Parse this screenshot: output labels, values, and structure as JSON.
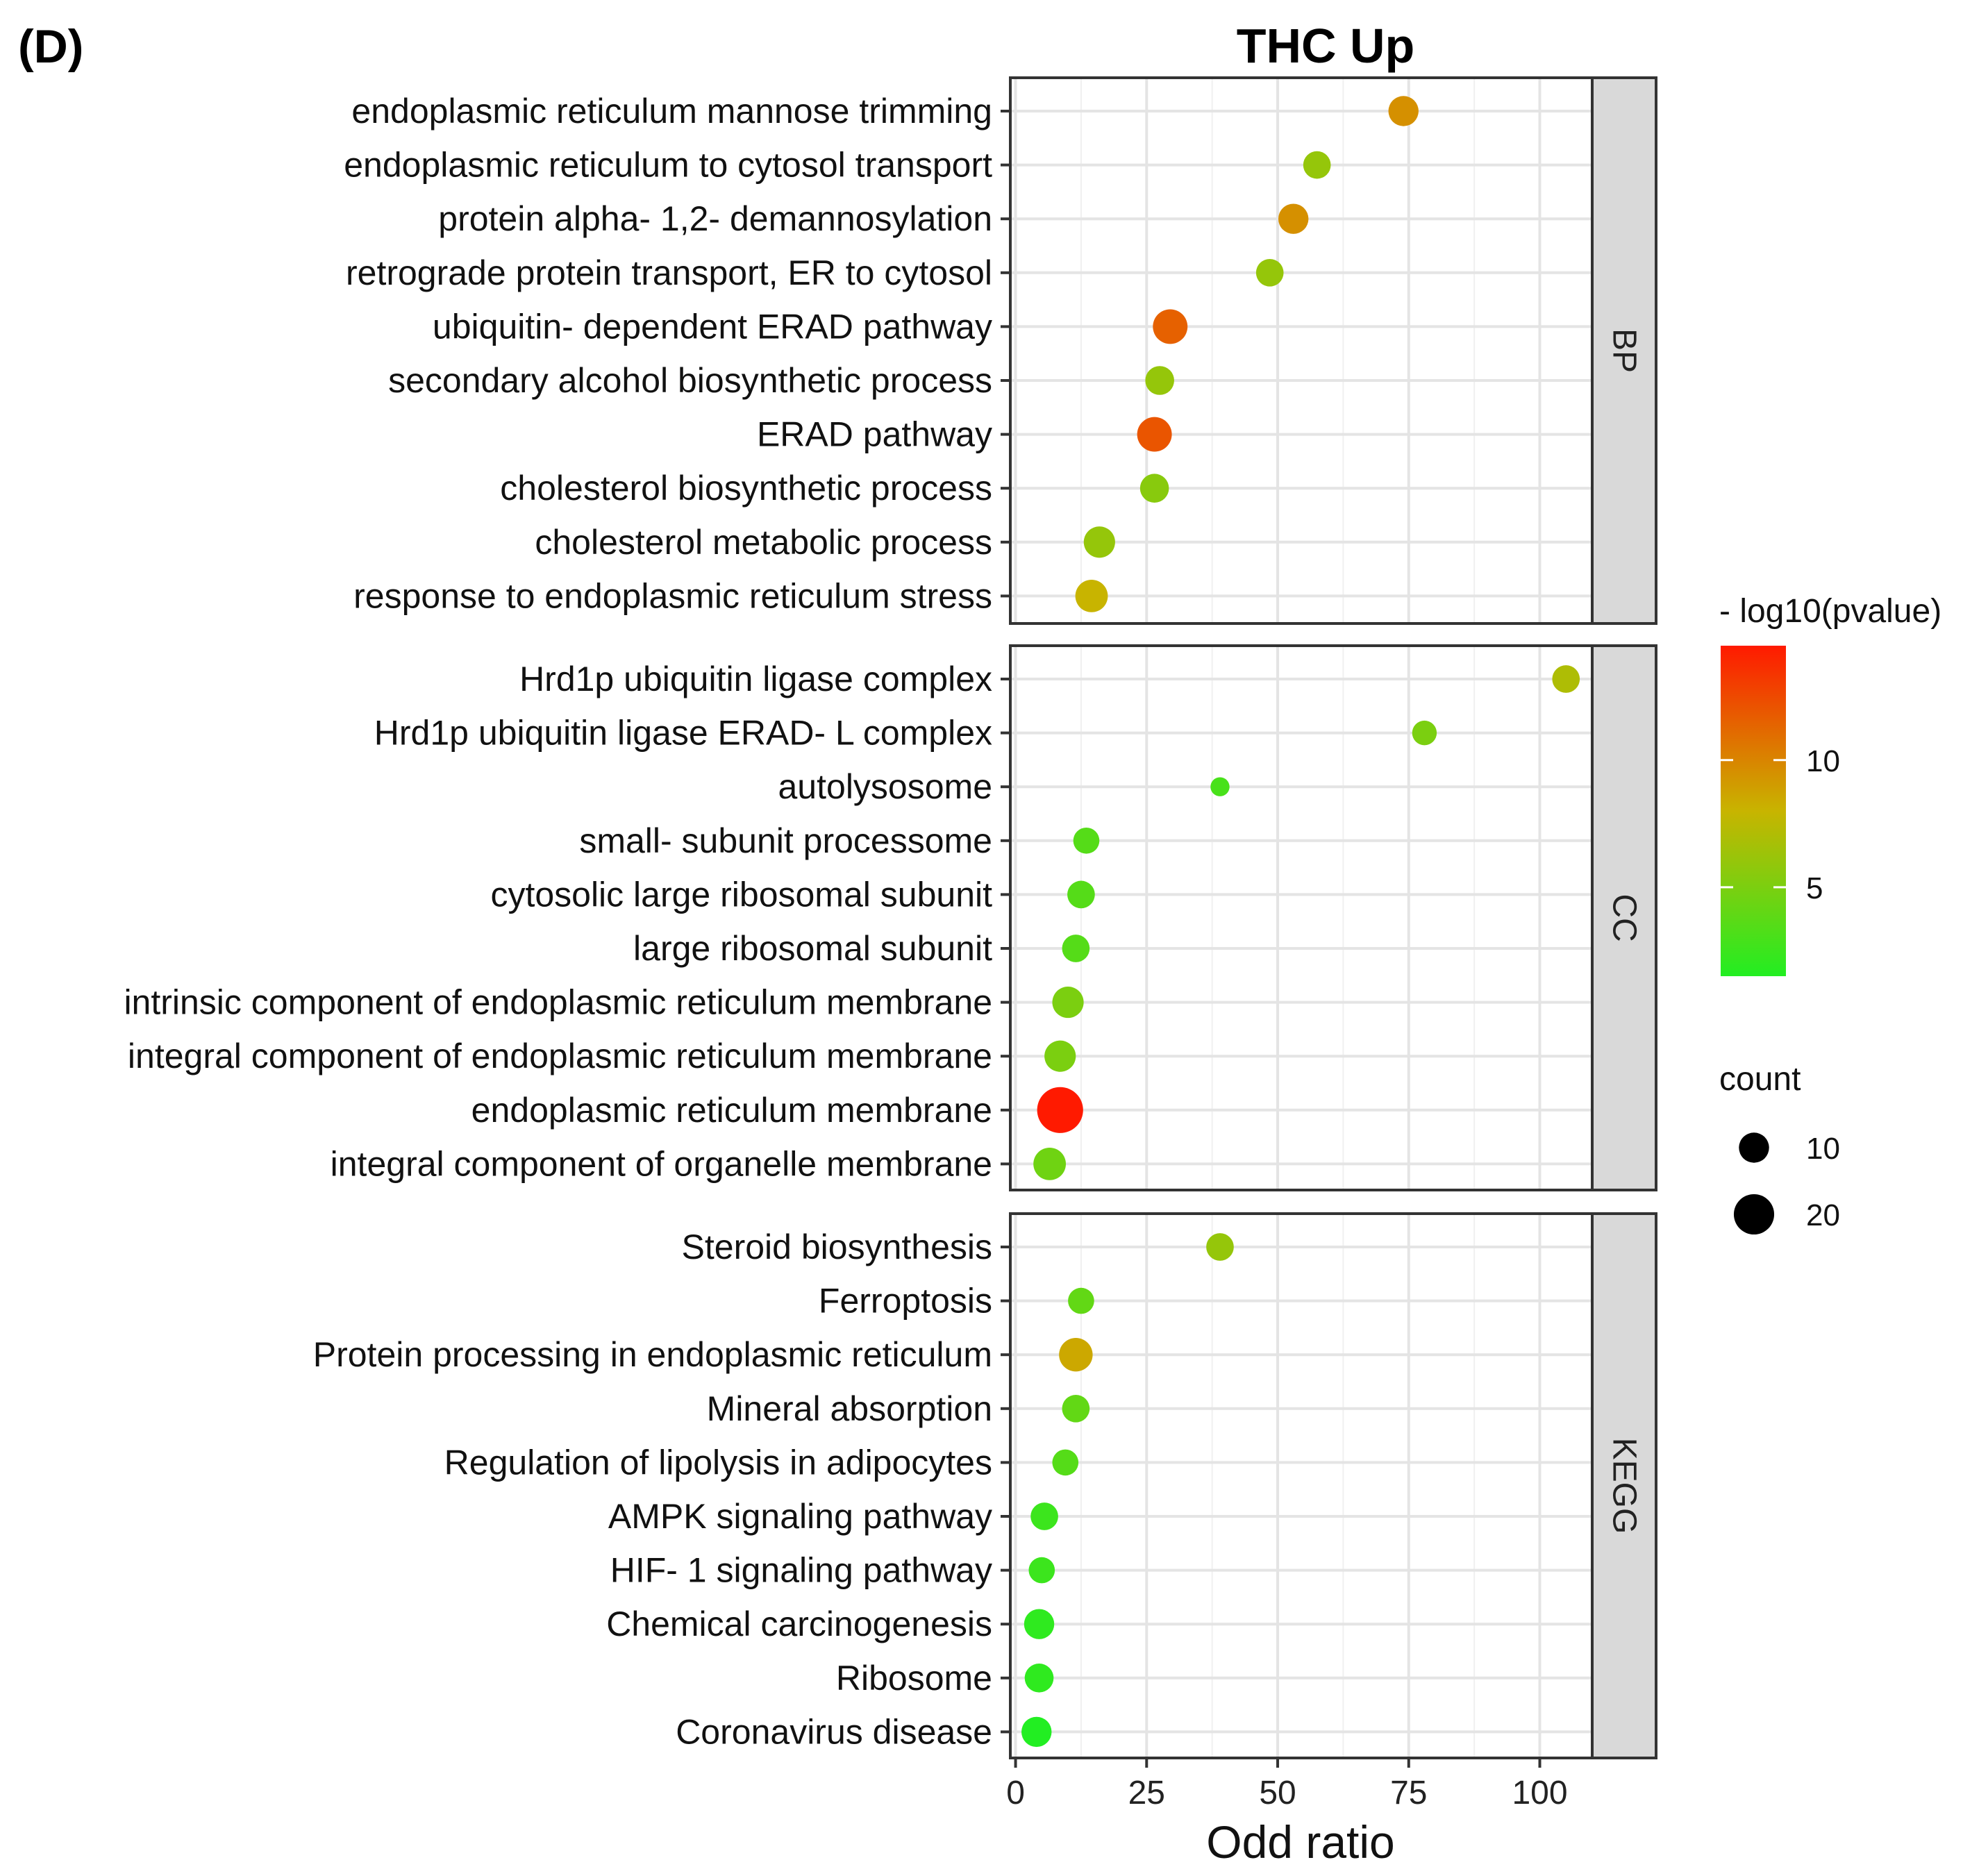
{
  "panel_label": "(D)",
  "chart_data": {
    "type": "scatter",
    "subtype": "enrichment-dot-plot",
    "title": "THC Up",
    "xlabel": "Odd ratio",
    "xlim": [
      -1,
      110
    ],
    "xticks": [
      0,
      25,
      50,
      75,
      100
    ],
    "grid": true,
    "facets": [
      {
        "name": "BP",
        "terms": [
          {
            "label": "endoplasmic reticulum mannose trimming",
            "odd_ratio": 74,
            "neglog10p": 9.5,
            "count": 10
          },
          {
            "label": "endoplasmic reticulum to cytosol transport",
            "odd_ratio": 57.5,
            "neglog10p": 6,
            "count": 8
          },
          {
            "label": "protein alpha- 1,2- demannosylation",
            "odd_ratio": 53,
            "neglog10p": 9.5,
            "count": 10
          },
          {
            "label": "retrograde protein transport, ER to cytosol",
            "odd_ratio": 48.5,
            "neglog10p": 6,
            "count": 8
          },
          {
            "label": "ubiquitin- dependent ERAD pathway",
            "odd_ratio": 29.5,
            "neglog10p": 11.5,
            "count": 14
          },
          {
            "label": "secondary alcohol biosynthetic process",
            "odd_ratio": 27.5,
            "neglog10p": 6,
            "count": 9
          },
          {
            "label": "ERAD pathway",
            "odd_ratio": 26.5,
            "neglog10p": 12,
            "count": 14
          },
          {
            "label": "cholesterol biosynthetic process",
            "odd_ratio": 26.5,
            "neglog10p": 5.5,
            "count": 9
          },
          {
            "label": "cholesterol metabolic process",
            "odd_ratio": 16,
            "neglog10p": 6,
            "count": 11
          },
          {
            "label": "response to endoplasmic reticulum stress",
            "odd_ratio": 14.5,
            "neglog10p": 8,
            "count": 12
          }
        ]
      },
      {
        "name": "CC",
        "terms": [
          {
            "label": "Hrd1p ubiquitin ligase complex",
            "odd_ratio": 105,
            "neglog10p": 7,
            "count": 8
          },
          {
            "label": "Hrd1p ubiquitin ligase ERAD- L complex",
            "odd_ratio": 78,
            "neglog10p": 5,
            "count": 6
          },
          {
            "label": "autolysosome",
            "odd_ratio": 39,
            "neglog10p": 3,
            "count": 3
          },
          {
            "label": "small- subunit processome",
            "odd_ratio": 13.5,
            "neglog10p": 3.5,
            "count": 7
          },
          {
            "label": "cytosolic large ribosomal subunit",
            "odd_ratio": 12.5,
            "neglog10p": 3.5,
            "count": 8
          },
          {
            "label": "large ribosomal subunit",
            "odd_ratio": 11.5,
            "neglog10p": 3.5,
            "count": 8
          },
          {
            "label": "intrinsic component of endoplasmic reticulum membrane",
            "odd_ratio": 10,
            "neglog10p": 5,
            "count": 11
          },
          {
            "label": "integral component of endoplasmic reticulum membrane",
            "odd_ratio": 8.5,
            "neglog10p": 5,
            "count": 11
          },
          {
            "label": "endoplasmic reticulum membrane",
            "odd_ratio": 8.5,
            "neglog10p": 14.5,
            "count": 27
          },
          {
            "label": "integral component of organelle membrane",
            "odd_ratio": 6.5,
            "neglog10p": 4.5,
            "count": 12
          }
        ]
      },
      {
        "name": "KEGG",
        "terms": [
          {
            "label": "Steroid biosynthesis",
            "odd_ratio": 39,
            "neglog10p": 6,
            "count": 8
          },
          {
            "label": "Ferroptosis",
            "odd_ratio": 12.5,
            "neglog10p": 4,
            "count": 7
          },
          {
            "label": "Protein processing in endoplasmic reticulum",
            "odd_ratio": 11.5,
            "neglog10p": 8.5,
            "count": 13
          },
          {
            "label": "Mineral absorption",
            "odd_ratio": 11.5,
            "neglog10p": 4,
            "count": 8
          },
          {
            "label": "Regulation of lipolysis in adipocytes",
            "odd_ratio": 9.5,
            "neglog10p": 3.5,
            "count": 7
          },
          {
            "label": "AMPK signaling pathway",
            "odd_ratio": 5.5,
            "neglog10p": 2.5,
            "count": 8
          },
          {
            "label": "HIF- 1 signaling pathway",
            "odd_ratio": 5,
            "neglog10p": 2.5,
            "count": 7
          },
          {
            "label": "Chemical carcinogenesis",
            "odd_ratio": 4.5,
            "neglog10p": 2,
            "count": 10
          },
          {
            "label": "Ribosome",
            "odd_ratio": 4.5,
            "neglog10p": 2,
            "count": 9
          },
          {
            "label": "Coronavirus disease",
            "odd_ratio": 4,
            "neglog10p": 1.5,
            "count": 10
          }
        ]
      }
    ],
    "color_legend": {
      "title": "- log10(pvalue)",
      "range": [
        1.5,
        14.5
      ],
      "ticks": [
        5,
        10
      ],
      "low_color": "#22ee22",
      "mid_color": "#c8b400",
      "high_color": "#ff1a00"
    },
    "size_legend": {
      "title": "count",
      "entries": [
        10,
        20
      ]
    }
  }
}
